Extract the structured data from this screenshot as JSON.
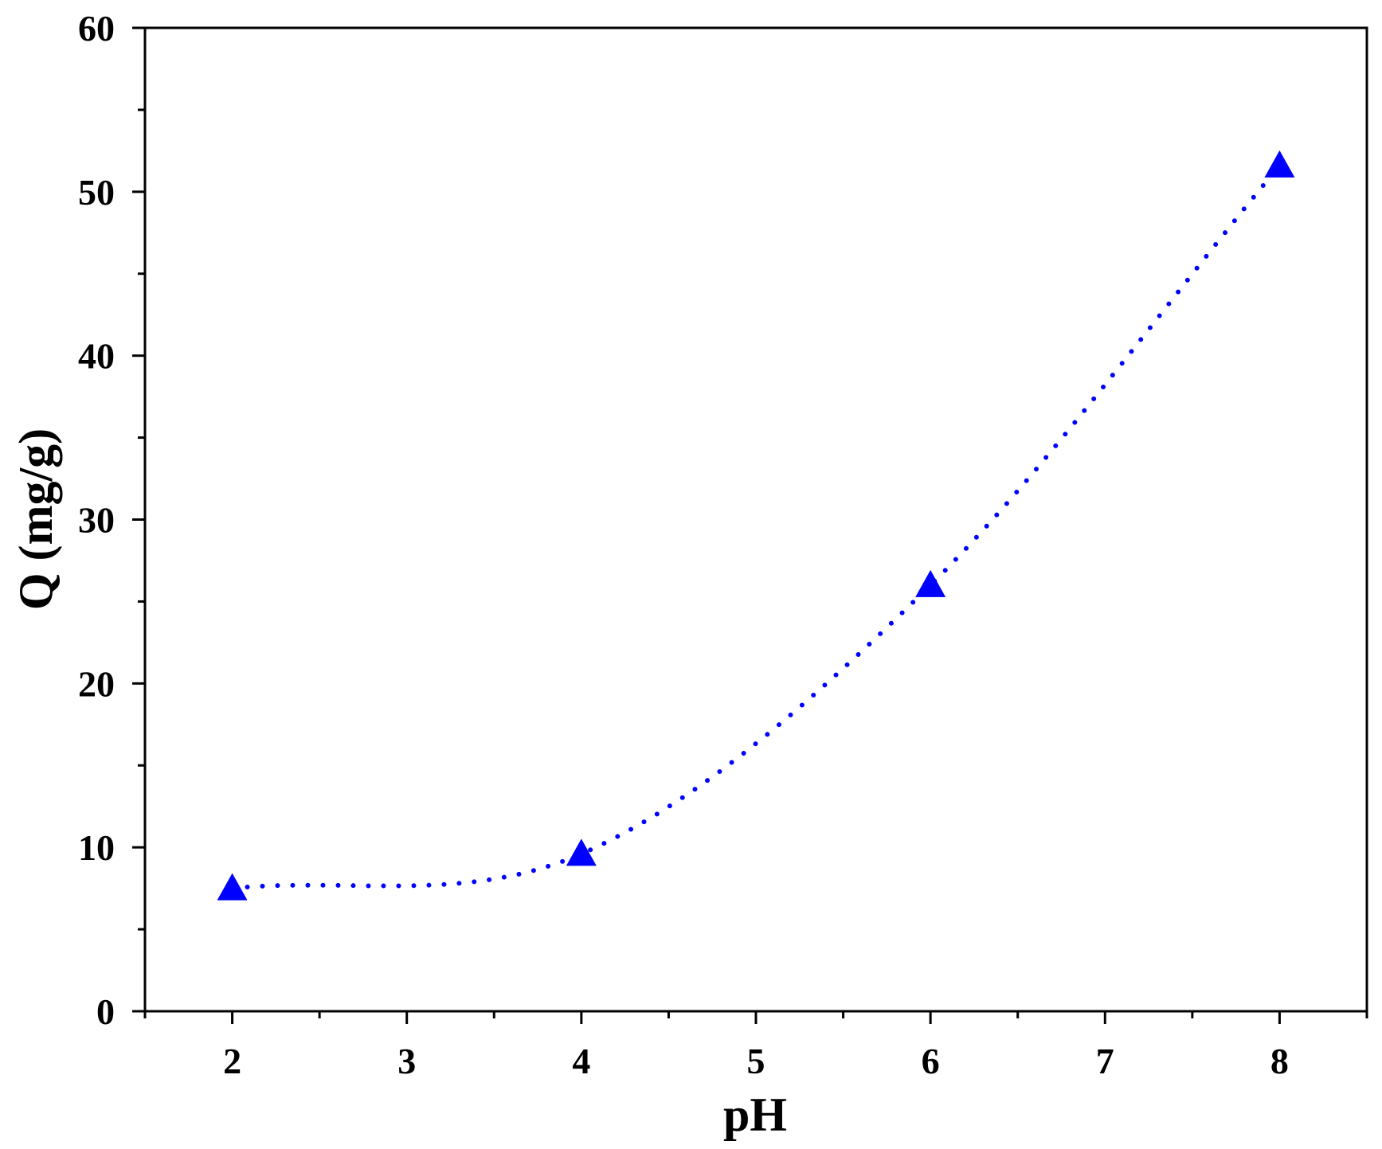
{
  "chart_data": {
    "type": "scatter",
    "title": "",
    "xlabel": "pH",
    "ylabel": "Q (mg/g)",
    "xlim": [
      1.5,
      8.5
    ],
    "ylim": [
      0,
      60
    ],
    "x_ticks": [
      2,
      3,
      4,
      5,
      6,
      7,
      8
    ],
    "y_ticks": [
      0,
      10,
      20,
      30,
      40,
      50,
      60
    ],
    "grid": false,
    "series": [
      {
        "x": [
          2,
          4,
          6,
          8
        ],
        "y": [
          7.5,
          9.6,
          26.0,
          51.6
        ],
        "marker": "triangle",
        "color": "#0000ff",
        "trend_line": "dotted smooth curve"
      }
    ]
  }
}
